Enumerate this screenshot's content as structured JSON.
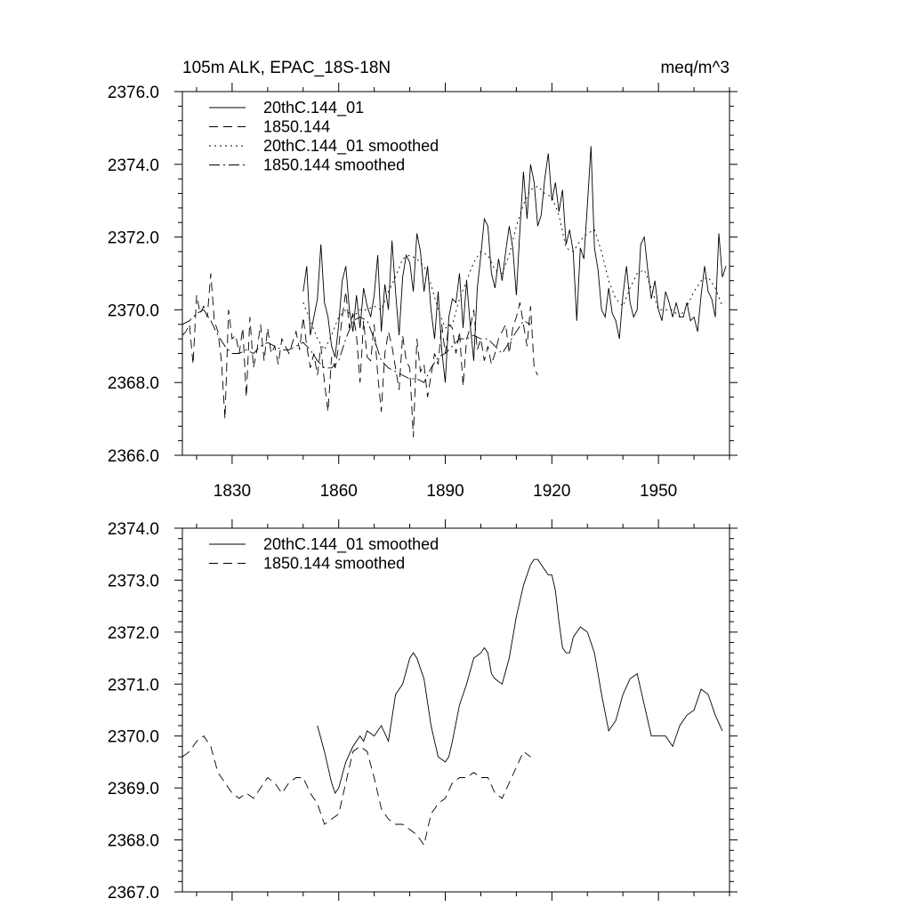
{
  "chart_data": [
    {
      "type": "line",
      "title": "105m ALK, EPAC_18S-18N",
      "units": "meq/m^3",
      "xlabel": "",
      "ylabel": "",
      "xlim": [
        1816,
        1970
      ],
      "ylim": [
        2366.0,
        2376.0
      ],
      "xticks": [
        1830,
        1860,
        1890,
        1920,
        1950
      ],
      "xtick_labels": [
        "1830",
        "1860",
        "1890",
        "1920",
        "1950"
      ],
      "yticks": [
        2366.0,
        2368.0,
        2370.0,
        2372.0,
        2374.0,
        2376.0
      ],
      "ytick_labels": [
        "2366.0",
        "2368.0",
        "2370.0",
        "2372.0",
        "2374.0",
        "2376.0"
      ],
      "grid": false,
      "legend_position": "top-left",
      "series": [
        {
          "name": "20thC.144_01",
          "style": "solid",
          "x": [
            1850,
            1851,
            1852,
            1853,
            1854,
            1855,
            1856,
            1857,
            1858,
            1859,
            1860,
            1861,
            1862,
            1863,
            1864,
            1865,
            1866,
            1867,
            1868,
            1869,
            1870,
            1871,
            1872,
            1873,
            1874,
            1875,
            1876,
            1877,
            1878,
            1879,
            1880,
            1881,
            1882,
            1883,
            1884,
            1885,
            1886,
            1887,
            1888,
            1889,
            1890,
            1891,
            1892,
            1893,
            1894,
            1895,
            1896,
            1897,
            1898,
            1899,
            1900,
            1901,
            1902,
            1903,
            1904,
            1905,
            1906,
            1907,
            1908,
            1909,
            1910,
            1911,
            1912,
            1913,
            1914,
            1915,
            1916,
            1917,
            1918,
            1919,
            1920,
            1921,
            1922,
            1923,
            1924,
            1925,
            1926,
            1927,
            1928,
            1929,
            1930,
            1931,
            1932,
            1933,
            1934,
            1935,
            1936,
            1937,
            1938,
            1939,
            1940,
            1941,
            1942,
            1943,
            1944,
            1945,
            1946,
            1947,
            1948,
            1949,
            1950,
            1951,
            1952,
            1953,
            1954,
            1955,
            1956,
            1957,
            1958,
            1959,
            1960,
            1961,
            1962,
            1963,
            1964,
            1965,
            1966,
            1967,
            1968,
            1969
          ],
          "values": [
            2370.5,
            2371.2,
            2369.3,
            2369.8,
            2370.3,
            2371.8,
            2370.2,
            2369.8,
            2369.0,
            2368.7,
            2369.6,
            2370.8,
            2371.2,
            2370.0,
            2369.4,
            2370.4,
            2369.5,
            2370.6,
            2370.1,
            2369.8,
            2370.4,
            2371.5,
            2369.4,
            2370.7,
            2370.0,
            2371.9,
            2370.5,
            2369.3,
            2370.9,
            2371.5,
            2371.3,
            2370.5,
            2372.1,
            2371.6,
            2370.5,
            2371.2,
            2370.0,
            2369.2,
            2370.5,
            2368.9,
            2368.0,
            2369.8,
            2370.3,
            2370.2,
            2371.0,
            2369.5,
            2370.8,
            2369.6,
            2368.6,
            2370.6,
            2371.5,
            2372.5,
            2372.3,
            2371.0,
            2370.6,
            2371.4,
            2370.8,
            2371.6,
            2372.3,
            2371.7,
            2370.4,
            2372.2,
            2373.8,
            2372.5,
            2374.0,
            2373.5,
            2372.3,
            2372.6,
            2373.6,
            2374.3,
            2373.0,
            2373.5,
            2372.7,
            2373.3,
            2371.8,
            2372.2,
            2371.6,
            2369.7,
            2371.7,
            2371.4,
            2372.9,
            2374.5,
            2371.7,
            2371.1,
            2370.0,
            2369.8,
            2370.6,
            2369.9,
            2369.7,
            2369.2,
            2370.4,
            2371.2,
            2370.2,
            2369.8,
            2370.0,
            2371.8,
            2372.0,
            2371.1,
            2370.3,
            2370.8,
            2370.0,
            2369.7,
            2370.5,
            2370.2,
            2369.8,
            2370.2,
            2369.8,
            2369.8,
            2370.2,
            2369.7,
            2369.8,
            2369.4,
            2370.4,
            2371.2,
            2370.5,
            2370.3,
            2369.8,
            2372.1,
            2370.9,
            2371.2
          ],
          "values_note": ""
        },
        {
          "name": "1850.144",
          "style": "dashed",
          "x": [
            1816,
            1817,
            1818,
            1819,
            1820,
            1821,
            1822,
            1823,
            1824,
            1825,
            1826,
            1827,
            1828,
            1829,
            1830,
            1831,
            1832,
            1833,
            1834,
            1835,
            1836,
            1837,
            1838,
            1839,
            1840,
            1841,
            1842,
            1843,
            1844,
            1845,
            1846,
            1847,
            1848,
            1849,
            1850,
            1851,
            1852,
            1853,
            1854,
            1855,
            1856,
            1857,
            1858,
            1859,
            1860,
            1861,
            1862,
            1863,
            1864,
            1865,
            1866,
            1867,
            1868,
            1869,
            1870,
            1871,
            1872,
            1873,
            1874,
            1875,
            1876,
            1877,
            1878,
            1879,
            1880,
            1881,
            1882,
            1883,
            1884,
            1885,
            1886,
            1887,
            1888,
            1889,
            1890,
            1891,
            1892,
            1893,
            1894,
            1895,
            1896,
            1897,
            1898,
            1899,
            1900,
            1901,
            1902,
            1903,
            1904,
            1905,
            1906,
            1907,
            1908,
            1909,
            1910,
            1911,
            1912,
            1913,
            1914,
            1915,
            1916
          ],
          "values": [
            2369.3,
            2369.4,
            2369.6,
            2368.5,
            2370.4,
            2369.9,
            2370.1,
            2369.8,
            2371.0,
            2369.7,
            2369.4,
            2368.6,
            2367.0,
            2370.0,
            2369.2,
            2369.3,
            2368.8,
            2369.5,
            2367.6,
            2369.8,
            2368.4,
            2368.9,
            2369.6,
            2368.6,
            2369.5,
            2368.8,
            2369.0,
            2368.5,
            2369.2,
            2369.0,
            2368.8,
            2369.1,
            2369.4,
            2368.9,
            2369.8,
            2369.0,
            2368.4,
            2368.8,
            2368.2,
            2369.0,
            2368.0,
            2367.2,
            2368.7,
            2368.4,
            2369.0,
            2369.8,
            2370.5,
            2369.5,
            2369.9,
            2369.3,
            2368.0,
            2369.7,
            2368.7,
            2368.6,
            2369.6,
            2368.2,
            2367.2,
            2368.8,
            2369.4,
            2369.0,
            2368.4,
            2367.8,
            2369.3,
            2368.6,
            2368.4,
            2366.5,
            2369.2,
            2368.3,
            2368.5,
            2367.6,
            2368.2,
            2368.8,
            2368.5,
            2369.6,
            2368.8,
            2369.6,
            2369.5,
            2368.8,
            2369.4,
            2367.9,
            2369.2,
            2369.5,
            2370.0,
            2368.9,
            2369.2,
            2368.6,
            2369.0,
            2368.5,
            2368.8,
            2369.2,
            2369.4,
            2369.6,
            2368.8,
            2369.5,
            2369.8,
            2370.2,
            2369.6,
            2369.0,
            2370.1,
            2368.4,
            2368.2
          ],
          "values_note": ""
        },
        {
          "name": "20thC.144_01 smoothed",
          "style": "dotted",
          "x": [
            1850,
            1852,
            1854,
            1856,
            1858,
            1860,
            1862,
            1864,
            1866,
            1868,
            1870,
            1872,
            1874,
            1876,
            1878,
            1880,
            1882,
            1884,
            1886,
            1888,
            1890,
            1892,
            1894,
            1896,
            1898,
            1900,
            1902,
            1904,
            1906,
            1908,
            1910,
            1912,
            1914,
            1916,
            1918,
            1920,
            1922,
            1924,
            1926,
            1928,
            1930,
            1932,
            1934,
            1936,
            1938,
            1940,
            1942,
            1944,
            1946,
            1948,
            1950,
            1952,
            1954,
            1956,
            1958,
            1960,
            1962,
            1964,
            1966,
            1968
          ],
          "values": [
            2370.2,
            2369.7,
            2369.2,
            2368.9,
            2369.3,
            2369.8,
            2370.0,
            2369.8,
            2370.0,
            2370.0,
            2370.1,
            2370.0,
            2370.5,
            2370.9,
            2371.4,
            2371.5,
            2371.4,
            2371.2,
            2370.7,
            2370.0,
            2369.5,
            2369.6,
            2370.3,
            2370.8,
            2371.3,
            2371.6,
            2371.5,
            2371.1,
            2371.0,
            2371.5,
            2372.3,
            2372.9,
            2373.3,
            2373.4,
            2373.2,
            2373.1,
            2372.6,
            2371.7,
            2371.6,
            2371.9,
            2372.1,
            2372.2,
            2371.6,
            2370.8,
            2370.3,
            2370.1,
            2370.6,
            2371.0,
            2371.1,
            2370.6,
            2370.0,
            2370.0,
            2370.0,
            2369.8,
            2370.1,
            2370.5,
            2370.8,
            2370.9,
            2370.6,
            2370.1
          ],
          "values_note": ""
        },
        {
          "name": "1850.144 smoothed",
          "style": "dashdot",
          "x": [
            1816,
            1818,
            1820,
            1822,
            1824,
            1826,
            1828,
            1830,
            1832,
            1834,
            1836,
            1838,
            1840,
            1842,
            1844,
            1846,
            1848,
            1850,
            1852,
            1854,
            1856,
            1858,
            1860,
            1862,
            1864,
            1866,
            1868,
            1870,
            1872,
            1874,
            1876,
            1878,
            1880,
            1882,
            1884,
            1886,
            1888,
            1890,
            1892,
            1894,
            1896,
            1898,
            1900,
            1902,
            1904,
            1906,
            1908,
            1910,
            1912,
            1914
          ],
          "values": [
            2369.6,
            2369.7,
            2369.9,
            2370.0,
            2369.7,
            2369.3,
            2369.0,
            2368.8,
            2368.8,
            2368.9,
            2368.8,
            2369.0,
            2369.1,
            2369.0,
            2368.9,
            2368.9,
            2369.0,
            2369.1,
            2368.9,
            2368.6,
            2368.4,
            2368.4,
            2368.6,
            2369.2,
            2369.7,
            2369.8,
            2369.7,
            2369.2,
            2368.6,
            2368.4,
            2368.3,
            2368.2,
            2368.1,
            2368.1,
            2368.0,
            2368.4,
            2368.7,
            2368.8,
            2369.0,
            2369.2,
            2369.2,
            2369.3,
            2369.2,
            2369.2,
            2369.0,
            2368.8,
            2369.1,
            2369.4,
            2369.7,
            2369.6
          ],
          "values_note": ""
        }
      ]
    },
    {
      "type": "line",
      "title": "",
      "xlabel": "",
      "ylabel": "",
      "xlim": [
        1816,
        1970
      ],
      "ylim": [
        2367.0,
        2374.0
      ],
      "xticks": [
        1830,
        1860,
        1890,
        1920,
        1950
      ],
      "xtick_labels": [],
      "yticks": [
        2367.0,
        2368.0,
        2369.0,
        2370.0,
        2371.0,
        2372.0,
        2373.0,
        2374.0
      ],
      "ytick_labels": [
        "2367.0",
        "2368.0",
        "2369.0",
        "2370.0",
        "2371.0",
        "2372.0",
        "2373.0",
        "2374.0"
      ],
      "grid": false,
      "legend_position": "top-left",
      "series": [
        {
          "name": "20thC.144_01 smoothed",
          "style": "solid",
          "x": [
            1854,
            1856,
            1858,
            1859,
            1860,
            1862,
            1864,
            1866,
            1867,
            1868,
            1870,
            1872,
            1874,
            1876,
            1878,
            1880,
            1881,
            1882,
            1883,
            1884,
            1886,
            1888,
            1890,
            1891,
            1892,
            1894,
            1896,
            1898,
            1900,
            1901,
            1902,
            1903,
            1904,
            1906,
            1908,
            1910,
            1912,
            1914,
            1915,
            1916,
            1917,
            1918,
            1919,
            1920,
            1921,
            1922,
            1923,
            1924,
            1925,
            1926,
            1927,
            1928,
            1930,
            1932,
            1934,
            1936,
            1938,
            1940,
            1942,
            1944,
            1946,
            1948,
            1950,
            1952,
            1954,
            1956,
            1958,
            1960,
            1962,
            1964,
            1966,
            1968
          ],
          "values": [
            2370.2,
            2369.7,
            2369.1,
            2368.9,
            2369.0,
            2369.5,
            2369.8,
            2370.0,
            2369.9,
            2370.1,
            2370.0,
            2370.2,
            2369.9,
            2370.8,
            2371.0,
            2371.5,
            2371.6,
            2371.5,
            2371.3,
            2371.1,
            2370.2,
            2369.6,
            2369.5,
            2369.6,
            2369.9,
            2370.6,
            2371.0,
            2371.5,
            2371.6,
            2371.7,
            2371.6,
            2371.2,
            2371.1,
            2371.0,
            2371.5,
            2372.3,
            2372.9,
            2373.3,
            2373.4,
            2373.4,
            2373.3,
            2373.2,
            2373.1,
            2373.1,
            2372.8,
            2372.2,
            2371.7,
            2371.6,
            2371.6,
            2371.9,
            2372.0,
            2372.1,
            2372.0,
            2371.6,
            2370.8,
            2370.1,
            2370.3,
            2370.8,
            2371.1,
            2371.2,
            2370.6,
            2370.0,
            2370.0,
            2370.0,
            2369.8,
            2370.2,
            2370.4,
            2370.5,
            2370.9,
            2370.8,
            2370.4,
            2370.1
          ],
          "values_note": ""
        },
        {
          "name": "1850.144 smoothed",
          "style": "dashed",
          "x": [
            1816,
            1818,
            1820,
            1822,
            1824,
            1826,
            1828,
            1830,
            1832,
            1834,
            1836,
            1838,
            1840,
            1842,
            1844,
            1846,
            1848,
            1850,
            1852,
            1854,
            1856,
            1858,
            1860,
            1862,
            1864,
            1866,
            1868,
            1870,
            1872,
            1874,
            1876,
            1878,
            1880,
            1882,
            1884,
            1886,
            1888,
            1890,
            1892,
            1894,
            1896,
            1898,
            1900,
            1902,
            1904,
            1906,
            1908,
            1910,
            1912,
            1914
          ],
          "values": [
            2369.6,
            2369.7,
            2369.9,
            2370.0,
            2369.8,
            2369.3,
            2369.1,
            2368.9,
            2368.8,
            2368.9,
            2368.8,
            2369.0,
            2369.2,
            2369.1,
            2368.9,
            2369.1,
            2369.2,
            2369.2,
            2368.9,
            2368.7,
            2368.3,
            2368.4,
            2368.5,
            2369.1,
            2369.7,
            2369.8,
            2369.7,
            2369.2,
            2368.6,
            2368.4,
            2368.3,
            2368.3,
            2368.2,
            2368.1,
            2367.9,
            2368.5,
            2368.7,
            2368.8,
            2369.1,
            2369.2,
            2369.2,
            2369.3,
            2369.2,
            2369.2,
            2368.9,
            2368.8,
            2369.1,
            2369.4,
            2369.7,
            2369.6
          ],
          "values_note": ""
        }
      ]
    }
  ]
}
